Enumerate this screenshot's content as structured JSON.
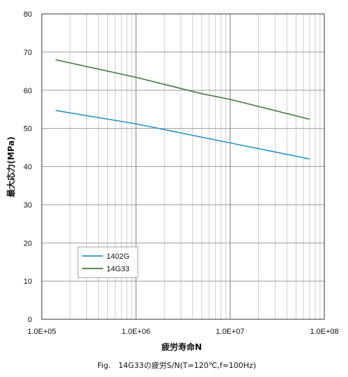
{
  "chart_data": {
    "type": "line",
    "x_scale": "log",
    "xlim": [
      100000,
      100000000
    ],
    "ylim": [
      0,
      80
    ],
    "grid": true,
    "legend_position": "lower-left",
    "xlabel": "疲労寿命N",
    "ylabel": "最大応力(MPa)",
    "caption": "Fig.　14G33の疲労S/N(T=120℃,f=100Hz)",
    "x_tick_labels": [
      "1.0E+05",
      "1.0E+06",
      "1.0E+07",
      "1.0E+08"
    ],
    "x_ticks": [
      100000,
      1000000,
      10000000,
      100000000
    ],
    "y_tick_labels": [
      "0",
      "10",
      "20",
      "30",
      "40",
      "50",
      "60",
      "70",
      "80"
    ],
    "y_ticks": [
      0,
      10,
      20,
      30,
      40,
      50,
      60,
      70,
      80
    ],
    "series": [
      {
        "name": "1402G",
        "color": "#2a93c4",
        "x": [
          140000,
          1000000,
          10000000,
          70000000
        ],
        "y": [
          54.7,
          51.2,
          46.2,
          42.0
        ]
      },
      {
        "name": "14G33",
        "color": "#3f7a3a",
        "x": [
          140000,
          1000000,
          5000000,
          10000000,
          70000000
        ],
        "y": [
          68.0,
          63.4,
          59.1,
          57.6,
          52.4
        ]
      }
    ]
  }
}
